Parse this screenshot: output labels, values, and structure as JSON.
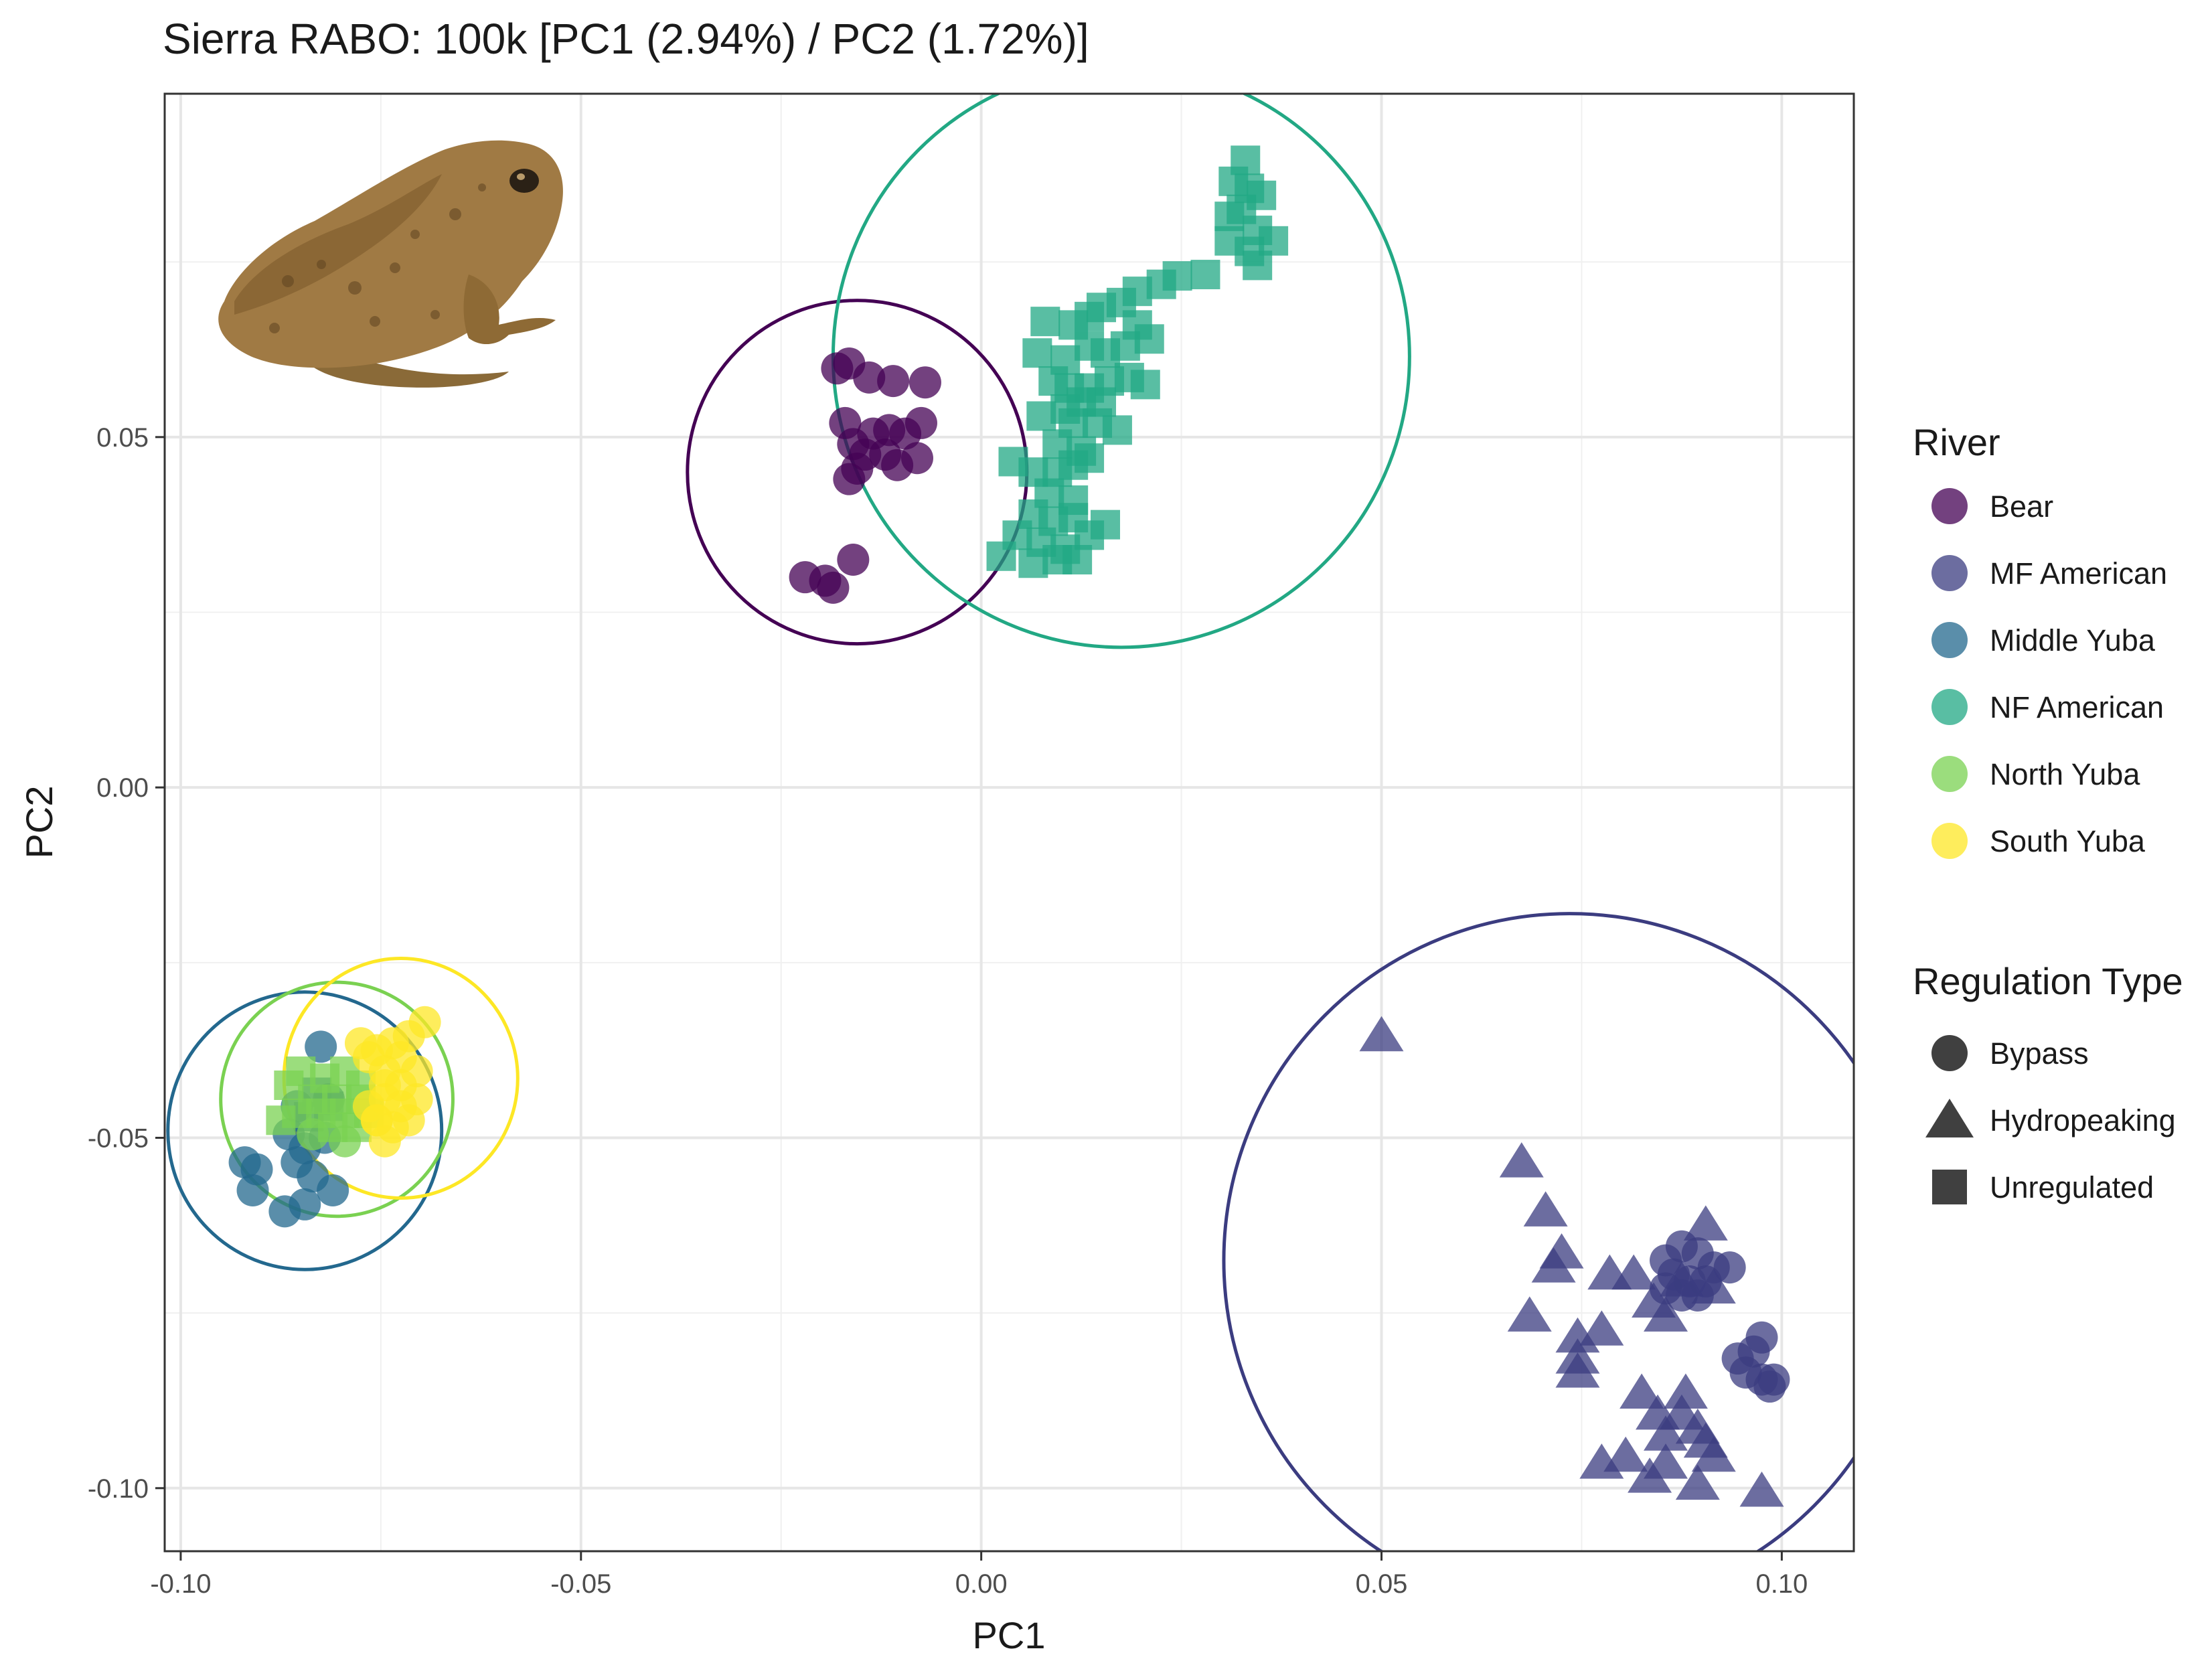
{
  "chart_data": {
    "type": "scatter",
    "title": "Sierra RABO: 100k [PC1 (2.94%) / PC2 (1.72%)]",
    "xlabel": "PC1",
    "ylabel": "PC2",
    "xlim": [
      -0.102,
      0.109
    ],
    "ylim": [
      -0.109,
      0.099
    ],
    "xticks": [
      -0.1,
      -0.05,
      0.0,
      0.05,
      0.1
    ],
    "xtick_labels": [
      "-0.10",
      "-0.05",
      "0.00",
      "0.05",
      "0.10"
    ],
    "yticks": [
      -0.1,
      -0.05,
      0.0,
      0.05
    ],
    "ytick_labels": [
      "-0.10",
      "-0.05",
      "0.00",
      "0.05"
    ],
    "grid": true,
    "legend_position": "right",
    "point_opacity": 0.75,
    "legends": {
      "river": {
        "title": "River",
        "items": [
          {
            "name": "Bear",
            "color": "#440154"
          },
          {
            "name": "MF American",
            "color": "#3B3C80"
          },
          {
            "name": "Middle Yuba",
            "color": "#23688E"
          },
          {
            "name": "NF American",
            "color": "#22A884"
          },
          {
            "name": "North Yuba",
            "color": "#7AD151"
          },
          {
            "name": "South Yuba",
            "color": "#FDE725"
          }
        ]
      },
      "regulation": {
        "title": "Regulation Type",
        "items": [
          {
            "name": "Bypass",
            "shape": "circle"
          },
          {
            "name": "Hydropeaking",
            "shape": "triangle"
          },
          {
            "name": "Unregulated",
            "shape": "square"
          }
        ]
      }
    },
    "ellipses": [
      {
        "river": "Bear",
        "color": "#440154",
        "center": [
          -0.0155,
          0.045
        ],
        "rx": 0.0212,
        "ry": 0.0245
      },
      {
        "river": "NF American",
        "color": "#22A884",
        "center": [
          0.0175,
          0.0615
        ],
        "rx": 0.036,
        "ry": 0.0415
      },
      {
        "river": "MF American",
        "color": "#3B3C80",
        "center": [
          0.0735,
          -0.0675
        ],
        "rx": 0.0432,
        "ry": 0.0495
      },
      {
        "river": "Middle Yuba",
        "color": "#23688E",
        "center": [
          -0.0845,
          -0.049
        ],
        "rx": 0.0171,
        "ry": 0.0198
      },
      {
        "river": "North Yuba",
        "color": "#7AD151",
        "center": [
          -0.0805,
          -0.0445
        ],
        "rx": 0.0145,
        "ry": 0.0167
      },
      {
        "river": "South Yuba",
        "color": "#FDE725",
        "center": [
          -0.0725,
          -0.0415
        ],
        "rx": 0.0146,
        "ry": 0.0171
      }
    ],
    "series": [
      {
        "river": "Bear",
        "shape": "circle",
        "color": "#440154",
        "points": [
          [
            -0.018,
            0.0598
          ],
          [
            -0.0165,
            0.0605
          ],
          [
            -0.014,
            0.0585
          ],
          [
            -0.011,
            0.058
          ],
          [
            -0.007,
            0.0578
          ],
          [
            -0.017,
            0.052
          ],
          [
            -0.016,
            0.049
          ],
          [
            -0.0135,
            0.0505
          ],
          [
            -0.0115,
            0.051
          ],
          [
            -0.0095,
            0.0505
          ],
          [
            -0.0075,
            0.052
          ],
          [
            -0.012,
            0.0475
          ],
          [
            -0.0155,
            0.0455
          ],
          [
            -0.0165,
            0.044
          ],
          [
            -0.0145,
            0.0475
          ],
          [
            -0.008,
            0.047
          ],
          [
            -0.0105,
            0.046
          ],
          [
            -0.016,
            0.0325
          ],
          [
            -0.0195,
            0.0295
          ],
          [
            -0.022,
            0.03
          ],
          [
            -0.0185,
            0.0285
          ]
        ]
      },
      {
        "river": "NF American",
        "shape": "square",
        "color": "#22A884",
        "points": [
          [
            0.033,
            0.0895
          ],
          [
            0.0315,
            0.0865
          ],
          [
            0.0335,
            0.0855
          ],
          [
            0.035,
            0.0845
          ],
          [
            0.031,
            0.0815
          ],
          [
            0.0325,
            0.0825
          ],
          [
            0.0345,
            0.0795
          ],
          [
            0.0365,
            0.078
          ],
          [
            0.0335,
            0.0765
          ],
          [
            0.0345,
            0.0745
          ],
          [
            0.031,
            0.078
          ],
          [
            0.028,
            0.0732
          ],
          [
            0.0245,
            0.073
          ],
          [
            0.0225,
            0.0718
          ],
          [
            0.0195,
            0.0708
          ],
          [
            0.0175,
            0.0692
          ],
          [
            0.015,
            0.0685
          ],
          [
            0.0135,
            0.0672
          ],
          [
            0.0115,
            0.066
          ],
          [
            0.008,
            0.0665
          ],
          [
            0.0195,
            0.066
          ],
          [
            0.021,
            0.064
          ],
          [
            0.018,
            0.063
          ],
          [
            0.0155,
            0.062
          ],
          [
            0.0135,
            0.063
          ],
          [
            0.0105,
            0.061
          ],
          [
            0.007,
            0.062
          ],
          [
            0.009,
            0.058
          ],
          [
            0.011,
            0.057
          ],
          [
            0.0135,
            0.057
          ],
          [
            0.016,
            0.058
          ],
          [
            0.0185,
            0.0585
          ],
          [
            0.0205,
            0.0575
          ],
          [
            0.0105,
            0.054
          ],
          [
            0.0125,
            0.055
          ],
          [
            0.015,
            0.055
          ],
          [
            0.0075,
            0.053
          ],
          [
            0.0115,
            0.052
          ],
          [
            0.0145,
            0.052
          ],
          [
            0.017,
            0.051
          ],
          [
            0.0095,
            0.049
          ],
          [
            0.0125,
            0.048
          ],
          [
            0.004,
            0.0465
          ],
          [
            0.0065,
            0.045
          ],
          [
            0.0095,
            0.045
          ],
          [
            0.0115,
            0.046
          ],
          [
            0.0135,
            0.047
          ],
          [
            0.0085,
            0.042
          ],
          [
            0.0115,
            0.041
          ],
          [
            0.0065,
            0.039
          ],
          [
            0.009,
            0.038
          ],
          [
            0.0115,
            0.0385
          ],
          [
            0.0155,
            0.0375
          ],
          [
            0.0135,
            0.036
          ],
          [
            0.0045,
            0.036
          ],
          [
            0.0075,
            0.035
          ],
          [
            0.0105,
            0.034
          ],
          [
            0.0025,
            0.033
          ],
          [
            0.0065,
            0.032
          ],
          [
            0.0095,
            0.0325
          ],
          [
            0.012,
            0.0325
          ]
        ]
      },
      {
        "river": "MF American",
        "shape": "triangle",
        "color": "#3B3C80",
        "points": [
          [
            0.05,
            -0.0355
          ],
          [
            0.0675,
            -0.0535
          ],
          [
            0.0705,
            -0.0605
          ],
          [
            0.0725,
            -0.0665
          ],
          [
            0.0715,
            -0.0685
          ],
          [
            0.0685,
            -0.0755
          ],
          [
            0.0785,
            -0.0695
          ],
          [
            0.0815,
            -0.0695
          ],
          [
            0.084,
            -0.0735
          ],
          [
            0.0855,
            -0.0755
          ],
          [
            0.0875,
            -0.0705
          ],
          [
            0.0905,
            -0.0625
          ],
          [
            0.0915,
            -0.0715
          ],
          [
            0.0775,
            -0.0775
          ],
          [
            0.0745,
            -0.0785
          ],
          [
            0.0745,
            -0.0815
          ],
          [
            0.0745,
            -0.0835
          ],
          [
            0.0825,
            -0.0865
          ],
          [
            0.0845,
            -0.0895
          ],
          [
            0.0855,
            -0.0925
          ],
          [
            0.0875,
            -0.0895
          ],
          [
            0.088,
            -0.0865
          ],
          [
            0.0895,
            -0.0915
          ],
          [
            0.0905,
            -0.0935
          ],
          [
            0.0915,
            -0.0955
          ],
          [
            0.0805,
            -0.0955
          ],
          [
            0.0855,
            -0.0965
          ],
          [
            0.0895,
            -0.0995
          ],
          [
            0.0975,
            -0.1005
          ],
          [
            0.0775,
            -0.0965
          ],
          [
            0.0835,
            -0.0985
          ]
        ]
      },
      {
        "river": "MF American",
        "shape": "circle",
        "color": "#3B3C80",
        "points": [
          [
            0.0855,
            -0.0675
          ],
          [
            0.0875,
            -0.0655
          ],
          [
            0.0895,
            -0.0665
          ],
          [
            0.0915,
            -0.0685
          ],
          [
            0.0935,
            -0.0685
          ],
          [
            0.0865,
            -0.0695
          ],
          [
            0.0885,
            -0.0705
          ],
          [
            0.0905,
            -0.0705
          ],
          [
            0.0875,
            -0.0725
          ],
          [
            0.0895,
            -0.0725
          ],
          [
            0.0855,
            -0.0715
          ],
          [
            0.0975,
            -0.0785
          ],
          [
            0.0965,
            -0.0805
          ],
          [
            0.0945,
            -0.0815
          ],
          [
            0.0955,
            -0.0835
          ],
          [
            0.0975,
            -0.0845
          ],
          [
            0.0985,
            -0.0855
          ],
          [
            0.099,
            -0.0845
          ]
        ]
      },
      {
        "river": "Middle Yuba",
        "shape": "circle",
        "color": "#23688E",
        "points": [
          [
            -0.0825,
            -0.037
          ],
          [
            -0.0865,
            -0.0495
          ],
          [
            -0.0845,
            -0.0515
          ],
          [
            -0.082,
            -0.05
          ],
          [
            -0.0855,
            -0.0535
          ],
          [
            -0.0905,
            -0.0545
          ],
          [
            -0.092,
            -0.0535
          ],
          [
            -0.091,
            -0.0575
          ],
          [
            -0.087,
            -0.0605
          ],
          [
            -0.0845,
            -0.0595
          ],
          [
            -0.081,
            -0.0575
          ],
          [
            -0.0835,
            -0.0555
          ],
          [
            -0.0855,
            -0.0455
          ],
          [
            -0.0815,
            -0.0445
          ]
        ]
      },
      {
        "river": "Middle Yuba",
        "shape": "square",
        "color": "#23688E",
        "points": [
          [
            -0.083,
            -0.0435
          ],
          [
            -0.0815,
            -0.0455
          ],
          [
            -0.084,
            -0.047
          ]
        ]
      },
      {
        "river": "North Yuba",
        "shape": "square",
        "color": "#7AD151",
        "points": [
          [
            -0.085,
            -0.0405
          ],
          [
            -0.082,
            -0.0415
          ],
          [
            -0.0795,
            -0.0405
          ],
          [
            -0.0775,
            -0.0425
          ],
          [
            -0.0865,
            -0.0425
          ],
          [
            -0.0835,
            -0.0445
          ],
          [
            -0.0805,
            -0.0445
          ],
          [
            -0.0775,
            -0.0445
          ],
          [
            -0.0855,
            -0.0465
          ],
          [
            -0.0825,
            -0.0465
          ],
          [
            -0.0795,
            -0.0465
          ],
          [
            -0.0765,
            -0.0465
          ],
          [
            -0.0875,
            -0.0475
          ],
          [
            -0.081,
            -0.0485
          ],
          [
            -0.078,
            -0.0485
          ]
        ]
      },
      {
        "river": "North Yuba",
        "shape": "circle",
        "color": "#7AD151",
        "points": [
          [
            -0.0835,
            -0.0495
          ],
          [
            -0.0795,
            -0.0505
          ]
        ]
      },
      {
        "river": "South Yuba",
        "shape": "circle",
        "color": "#FDE725",
        "points": [
          [
            -0.0695,
            -0.0335
          ],
          [
            -0.0715,
            -0.0355
          ],
          [
            -0.0735,
            -0.0365
          ],
          [
            -0.0765,
            -0.0385
          ],
          [
            -0.0755,
            -0.0375
          ],
          [
            -0.0775,
            -0.0365
          ],
          [
            -0.0725,
            -0.0385
          ],
          [
            -0.0745,
            -0.0405
          ],
          [
            -0.0705,
            -0.0405
          ],
          [
            -0.0725,
            -0.0425
          ],
          [
            -0.0745,
            -0.0425
          ],
          [
            -0.0705,
            -0.0445
          ],
          [
            -0.0725,
            -0.0455
          ],
          [
            -0.0745,
            -0.0445
          ],
          [
            -0.0765,
            -0.0455
          ],
          [
            -0.0755,
            -0.0475
          ],
          [
            -0.0735,
            -0.0485
          ],
          [
            -0.0715,
            -0.0475
          ],
          [
            -0.0745,
            -0.0505
          ],
          [
            -0.0755,
            -0.0475
          ]
        ]
      }
    ]
  }
}
